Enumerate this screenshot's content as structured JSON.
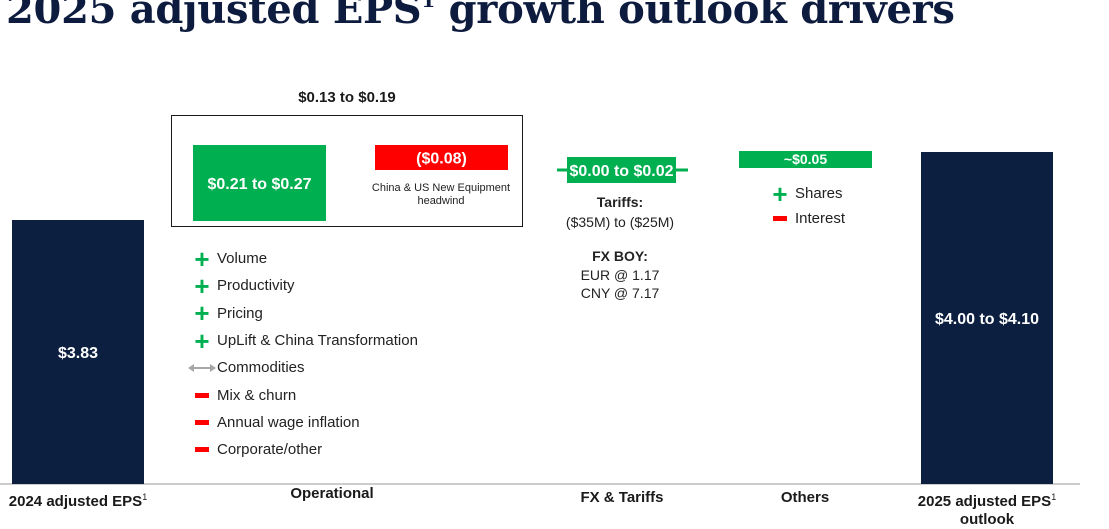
{
  "title": "2025 adjusted EPS",
  "title_sup": "1",
  "chart_data": {
    "type": "bar",
    "subtype": "waterfall",
    "title": "2025 adjusted EPS growth outlook drivers",
    "categories": [
      "2024 adjusted EPS",
      "Operational",
      "FX & Tariffs",
      "Others",
      "2025 adjusted EPS outlook"
    ],
    "category_footnotes": [
      "1",
      "",
      "",
      "",
      "1"
    ],
    "bars": [
      {
        "category": "2024 adjusted EPS",
        "kind": "total",
        "value": 3.83,
        "label": "$3.83",
        "color": "#0d1f40"
      },
      {
        "category": "Operational",
        "kind": "increase",
        "low": 0.21,
        "high": 0.27,
        "label": "$0.21 to $0.27",
        "color": "#00b050"
      },
      {
        "category": "Operational",
        "kind": "decrease",
        "value": -0.08,
        "label": "($0.08)",
        "note": "China & US New Equipment headwind",
        "color": "#ff0000"
      },
      {
        "category": "FX & Tariffs",
        "kind": "range",
        "low": 0.0,
        "high": 0.02,
        "label": "$0.00 to $0.02",
        "color": "#00b050"
      },
      {
        "category": "Others",
        "kind": "increase",
        "value": 0.05,
        "label": "~$0.05",
        "color": "#00b050"
      },
      {
        "category": "2025 adjusted EPS outlook",
        "kind": "total",
        "low": 4.0,
        "high": 4.1,
        "label": "$4.00 to $4.10",
        "color": "#0d1f40"
      }
    ],
    "operational_total": "$0.13 to $0.19",
    "axis_visible": false,
    "grid": false
  },
  "operational_drivers": [
    {
      "sign": "plus",
      "label": "Volume"
    },
    {
      "sign": "plus",
      "label": "Productivity"
    },
    {
      "sign": "plus",
      "label": "Pricing"
    },
    {
      "sign": "plus",
      "label": "UpLift & China Transformation"
    },
    {
      "sign": "neutral",
      "label": "Commodities"
    },
    {
      "sign": "minus",
      "label": "Mix & churn"
    },
    {
      "sign": "minus",
      "label": "Annual wage inflation"
    },
    {
      "sign": "minus",
      "label": "Corporate/other"
    }
  ],
  "fx_tariffs": {
    "tariffs_heading": "Tariffs:",
    "tariffs_value": "($35M) to ($25M)",
    "fx_heading": "FX BOY:",
    "fx_rates": [
      "EUR @ 1.17",
      "CNY @ 7.17"
    ]
  },
  "others_drivers": [
    {
      "sign": "plus",
      "label": "Shares"
    },
    {
      "sign": "minus",
      "label": "Interest"
    }
  ],
  "colors": {
    "navy": "#0d1f40",
    "green": "#00b050",
    "red": "#ff0000",
    "neutral": "#a6a6a6"
  }
}
